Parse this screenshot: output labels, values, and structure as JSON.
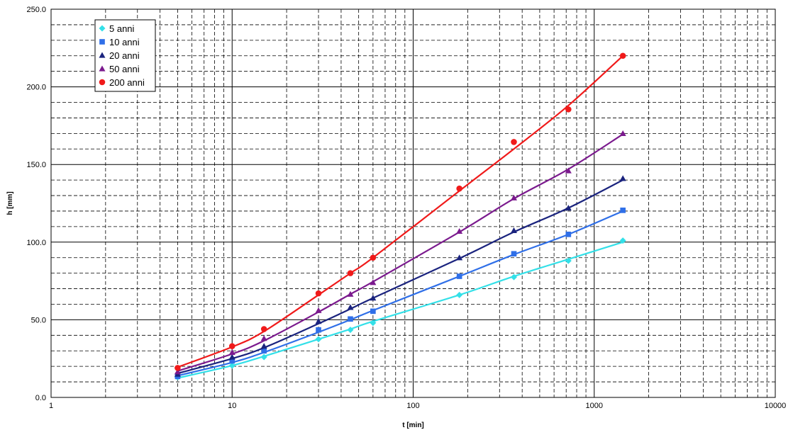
{
  "chart_data": {
    "type": "scatter",
    "title": "",
    "xlabel": "t [min]",
    "ylabel": "h [mm]",
    "x_scale": "log",
    "xlim": [
      1,
      10000
    ],
    "ylim": [
      0,
      250
    ],
    "x_ticks": [
      1,
      10,
      100,
      1000,
      10000
    ],
    "x_tick_labels": [
      "1",
      "10",
      "100",
      "1000",
      "10000"
    ],
    "y_ticks": [
      0,
      50,
      100,
      150,
      200,
      250
    ],
    "y_tick_labels": [
      "0.0",
      "50.0",
      "100.0",
      "150.0",
      "200.0",
      "250.0"
    ],
    "grid": true,
    "legend_position": "top-left",
    "series": [
      {
        "name": "5 anni",
        "color": "#33e0e8",
        "marker": "diamond",
        "x": [
          5,
          10,
          15,
          30,
          45,
          60,
          180,
          360,
          720,
          1440
        ],
        "y": [
          13,
          20.5,
          26,
          37.5,
          43.5,
          48,
          66,
          77.5,
          88,
          101
        ],
        "fit": [
          12.5,
          20.5,
          26.5,
          37.5,
          44,
          49,
          66,
          78,
          89,
          100
        ]
      },
      {
        "name": "10 anni",
        "color": "#2f6fe8",
        "marker": "square",
        "x": [
          5,
          10,
          15,
          30,
          45,
          60,
          180,
          360,
          720,
          1440
        ],
        "y": [
          13.5,
          23.5,
          30,
          43.5,
          50.5,
          55.5,
          78,
          92.5,
          105,
          120.5
        ],
        "fit": [
          14,
          22.5,
          29,
          42,
          50,
          56,
          78,
          92,
          105,
          120
        ]
      },
      {
        "name": "20 anni",
        "color": "#1a237e",
        "marker": "triangle",
        "x": [
          5,
          10,
          15,
          30,
          45,
          60,
          180,
          360,
          720,
          1440
        ],
        "y": [
          15,
          26,
          33,
          49,
          58,
          64,
          90,
          107.5,
          122,
          141
        ],
        "fit": [
          15.5,
          25,
          32,
          47.5,
          57,
          64,
          89.5,
          106.5,
          122,
          140
        ]
      },
      {
        "name": "50 anni",
        "color": "#7b1a8e",
        "marker": "triangle",
        "x": [
          5,
          10,
          15,
          30,
          45,
          60,
          180,
          360,
          720,
          1440
        ],
        "y": [
          16.5,
          29,
          38,
          56,
          66.5,
          74,
          107,
          128.5,
          146,
          170
        ],
        "fit": [
          17,
          28,
          36.5,
          55,
          66.5,
          74.5,
          106.5,
          128,
          147,
          169.5
        ]
      },
      {
        "name": "200 anni",
        "color": "#f01a1a",
        "marker": "circle",
        "x": [
          5,
          10,
          15,
          30,
          45,
          60,
          180,
          360,
          720,
          1440
        ],
        "y": [
          19,
          33,
          44,
          67,
          80,
          90,
          134.5,
          164.5,
          185.5,
          220
        ],
        "fit": [
          19.5,
          32.5,
          42.5,
          66,
          80,
          90,
          133,
          160,
          188,
          220
        ]
      }
    ]
  }
}
